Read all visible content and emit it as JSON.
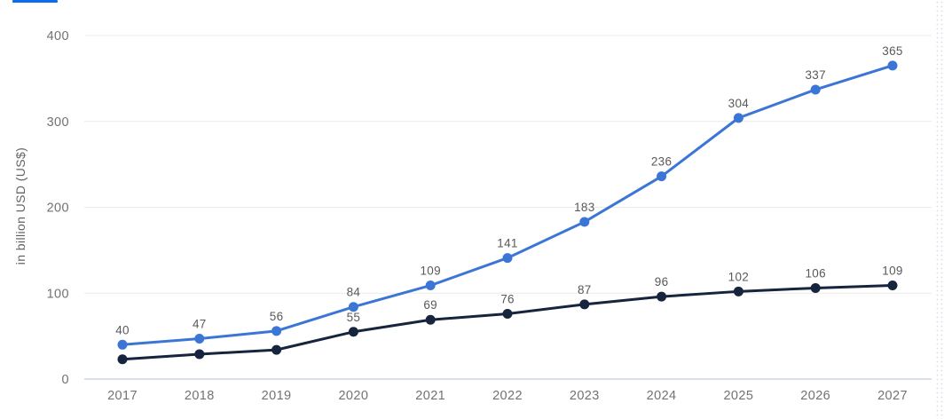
{
  "page": {
    "tab_indicator_color": "#0b6cf2"
  },
  "chart_data": {
    "type": "line",
    "title": "",
    "ylabel": "in billion USD (US$)",
    "xlabel": "",
    "x": [
      "2017",
      "2018",
      "2019",
      "2020",
      "2021",
      "2022",
      "2023",
      "2024",
      "2025",
      "2026",
      "2027"
    ],
    "yticks": [
      "400",
      "300",
      "200",
      "100",
      "0"
    ],
    "ytick_values": [
      400,
      300,
      200,
      100,
      0
    ],
    "ylim": [
      0,
      400
    ],
    "grid": true,
    "legend": "none",
    "series": [
      {
        "name": "series-1",
        "color": "#3b76d6",
        "values": [
          40,
          47,
          56,
          84,
          109,
          141,
          183,
          236,
          304,
          337,
          365
        ],
        "labels": [
          "40",
          "47",
          "56",
          "84",
          "109",
          "141",
          "183",
          "236",
          "304",
          "337",
          "365"
        ]
      },
      {
        "name": "series-2",
        "color": "#16253d",
        "values": [
          23,
          29,
          34,
          55,
          69,
          76,
          87,
          96,
          102,
          106,
          109
        ],
        "labels": [
          "",
          "",
          "",
          "55",
          "69",
          "76",
          "87",
          "96",
          "102",
          "106",
          "109"
        ]
      }
    ]
  }
}
